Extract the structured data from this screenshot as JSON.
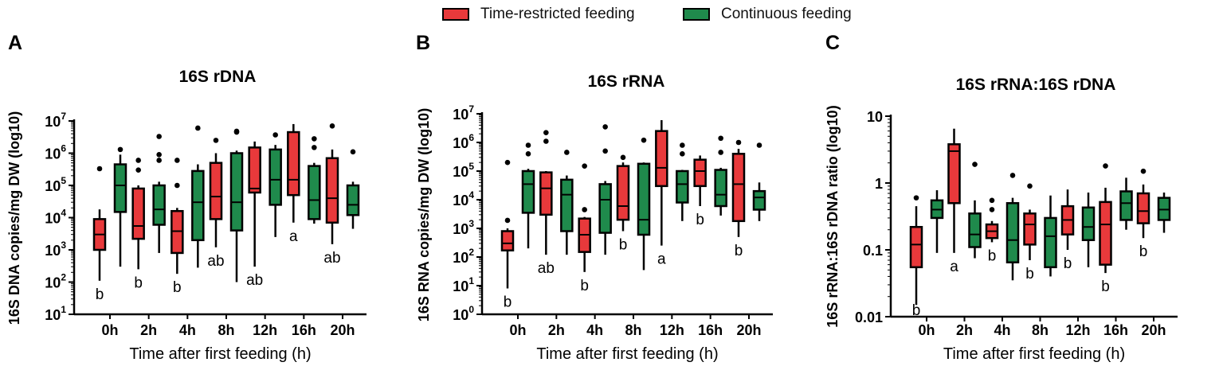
{
  "legend": {
    "trf_label": "Time-restricted feeding",
    "cf_label": "Continuous feeding",
    "trf_color": "#e8393b",
    "cf_color": "#1f8a4c"
  },
  "chart_data": [
    {
      "type": "boxplot",
      "panel_letter": "A",
      "title": "16S rDNA",
      "xlabel": "Time after first feeding (h)",
      "ylabel": "16S DNA copies/mg DW (log10)",
      "yscale": "log10",
      "ylim": [
        10,
        10000000
      ],
      "ytick_labels": [
        {
          "base": "10",
          "exp": "1"
        },
        {
          "base": "10",
          "exp": "2"
        },
        {
          "base": "10",
          "exp": "3"
        },
        {
          "base": "10",
          "exp": "4"
        },
        {
          "base": "10",
          "exp": "5"
        },
        {
          "base": "10",
          "exp": "6"
        },
        {
          "base": "10",
          "exp": "7"
        }
      ],
      "categories": [
        "0h",
        "2h",
        "4h",
        "8h",
        "12h",
        "16h",
        "20h"
      ],
      "letters": [
        "b",
        "b",
        "b",
        "ab",
        "ab",
        "a",
        "ab"
      ],
      "series": [
        {
          "name": "Time-restricted feeding",
          "boxes": [
            {
              "min": 110,
              "q1": 1000,
              "median": 3000,
              "q3": 9000,
              "max": 18000,
              "outliers": [
                330000
              ]
            },
            {
              "min": 250,
              "q1": 2200,
              "median": 5500,
              "q3": 80000,
              "max": 100000,
              "outliers": [
                300000,
                600000
              ]
            },
            {
              "min": 180,
              "q1": 800,
              "median": 3800,
              "q3": 16000,
              "max": 20000,
              "outliers": [
                100000,
                600000
              ]
            },
            {
              "min": 1200,
              "q1": 9000,
              "median": 45000,
              "q3": 500000,
              "max": 1000000,
              "outliers": [
                2500000
              ]
            },
            {
              "min": 300,
              "q1": 60000,
              "median": 80000,
              "q3": 1500000,
              "max": 2300000,
              "outliers": []
            },
            {
              "min": 7000,
              "q1": 50000,
              "median": 150000,
              "q3": 4500000,
              "max": 8000000,
              "outliers": []
            },
            {
              "min": 1500,
              "q1": 7000,
              "median": 40000,
              "q3": 700000,
              "max": 1300000,
              "outliers": [
                7000000
              ]
            }
          ]
        },
        {
          "name": "Continuous feeding",
          "boxes": [
            {
              "min": 300,
              "q1": 15000,
              "median": 100000,
              "q3": 450000,
              "max": 900000,
              "outliers": [
                1300000
              ]
            },
            {
              "min": 800,
              "q1": 6000,
              "median": 18000,
              "q3": 100000,
              "max": 130000,
              "outliers": [
                600000,
                900000,
                3300000
              ]
            },
            {
              "min": 280,
              "q1": 2000,
              "median": 30000,
              "q3": 280000,
              "max": 450000,
              "outliers": [
                6000000
              ]
            },
            {
              "min": 100,
              "q1": 4000,
              "median": 30000,
              "q3": 1000000,
              "max": 1200000,
              "outliers": [
                4500000,
                4800000
              ]
            },
            {
              "min": 2500,
              "q1": 25000,
              "median": 150000,
              "q3": 1300000,
              "max": 1800000,
              "outliers": [
                3700000
              ]
            },
            {
              "min": 6500,
              "q1": 9000,
              "median": 35000,
              "q3": 400000,
              "max": 500000,
              "outliers": [
                1500000,
                2800000
              ]
            },
            {
              "min": 4500,
              "q1": 12000,
              "median": 25000,
              "q3": 100000,
              "max": 130000,
              "outliers": [
                1100000
              ]
            }
          ]
        }
      ]
    },
    {
      "type": "boxplot",
      "panel_letter": "B",
      "title": "16S rRNA",
      "xlabel": "Time after first feeding (h)",
      "ylabel": "16S RNA copies/mg DW (log10)",
      "yscale": "log10",
      "ylim": [
        1,
        10000000
      ],
      "ytick_labels": [
        {
          "base": "10",
          "exp": "0"
        },
        {
          "base": "10",
          "exp": "1"
        },
        {
          "base": "10",
          "exp": "2"
        },
        {
          "base": "10",
          "exp": "3"
        },
        {
          "base": "10",
          "exp": "4"
        },
        {
          "base": "10",
          "exp": "5"
        },
        {
          "base": "10",
          "exp": "6"
        },
        {
          "base": "10",
          "exp": "7"
        }
      ],
      "categories": [
        "0h",
        "2h",
        "4h",
        "8h",
        "12h",
        "16h",
        "20h"
      ],
      "letters": [
        "b",
        "ab",
        "b",
        "b",
        "a",
        "b",
        "b"
      ],
      "series": [
        {
          "name": "Time-restricted feeding",
          "boxes": [
            {
              "min": 8,
              "q1": 170,
              "median": 300,
              "q3": 800,
              "max": 1000,
              "outliers": [
                1900,
                200000
              ]
            },
            {
              "min": 120,
              "q1": 3000,
              "median": 25000,
              "q3": 90000,
              "max": 100000,
              "outliers": [
                1100000,
                2200000
              ]
            },
            {
              "min": 30,
              "q1": 150,
              "median": 600,
              "q3": 2200,
              "max": 2500,
              "outliers": [
                4500,
                150000
              ]
            },
            {
              "min": 800,
              "q1": 2000,
              "median": 6000,
              "q3": 150000,
              "max": 200000,
              "outliers": [
                300000
              ]
            },
            {
              "min": 250,
              "q1": 30000,
              "median": 130000,
              "q3": 2500000,
              "max": 6000000,
              "outliers": []
            },
            {
              "min": 6000,
              "q1": 30000,
              "median": 100000,
              "q3": 250000,
              "max": 350000,
              "outliers": []
            },
            {
              "min": 500,
              "q1": 1800,
              "median": 35000,
              "q3": 400000,
              "max": 600000,
              "outliers": [
                1000000
              ]
            }
          ]
        },
        {
          "name": "Continuous feeding",
          "boxes": [
            {
              "min": 200,
              "q1": 3500,
              "median": 35000,
              "q3": 100000,
              "max": 120000,
              "outliers": [
                400000,
                800000
              ]
            },
            {
              "min": 120,
              "q1": 800,
              "median": 15000,
              "q3": 50000,
              "max": 70000,
              "outliers": [
                450000
              ]
            },
            {
              "min": 120,
              "q1": 700,
              "median": 10000,
              "q3": 35000,
              "max": 45000,
              "outliers": [
                500000,
                3500000
              ]
            },
            {
              "min": 35,
              "q1": 600,
              "median": 2000,
              "q3": 180000,
              "max": 200000,
              "outliers": [
                1200000
              ]
            },
            {
              "min": 1800,
              "q1": 8000,
              "median": 35000,
              "q3": 100000,
              "max": 110000,
              "outliers": [
                400000,
                800000
              ]
            },
            {
              "min": 2800,
              "q1": 6000,
              "median": 15000,
              "q3": 110000,
              "max": 130000,
              "outliers": [
                450000,
                1400000
              ]
            },
            {
              "min": 1800,
              "q1": 4500,
              "median": 12000,
              "q3": 20000,
              "max": 40000,
              "outliers": [
                800000
              ]
            }
          ]
        }
      ]
    },
    {
      "type": "boxplot",
      "panel_letter": "C",
      "title": "16S rRNA:16S rDNA",
      "xlabel": "Time after first feeding (h)",
      "ylabel": "16S rRNA:16S rDNA ratio (log10)",
      "yscale": "log10",
      "ylim": [
        0.01,
        10
      ],
      "ytick_labels": [
        {
          "base": "0.01",
          "exp": ""
        },
        {
          "base": "0.1",
          "exp": ""
        },
        {
          "base": "1",
          "exp": ""
        },
        {
          "base": "10",
          "exp": ""
        }
      ],
      "categories": [
        "0h",
        "2h",
        "4h",
        "8h",
        "12h",
        "16h",
        "20h"
      ],
      "letters": [
        "b",
        "a",
        "b",
        "b",
        "b",
        "b",
        "b"
      ],
      "series": [
        {
          "name": "Time-restricted feeding",
          "boxes": [
            {
              "min": 0.015,
              "q1": 0.055,
              "median": 0.12,
              "q3": 0.22,
              "max": 0.45,
              "outliers": [
                0.6
              ]
            },
            {
              "min": 0.09,
              "q1": 0.5,
              "median": 3.0,
              "q3": 3.8,
              "max": 6.5,
              "outliers": []
            },
            {
              "min": 0.13,
              "q1": 0.15,
              "median": 0.19,
              "q3": 0.24,
              "max": 0.27,
              "outliers": [
                0.4,
                0.55
              ]
            },
            {
              "min": 0.07,
              "q1": 0.12,
              "median": 0.24,
              "q3": 0.35,
              "max": 0.4,
              "outliers": [
                0.9
              ]
            },
            {
              "min": 0.1,
              "q1": 0.17,
              "median": 0.28,
              "q3": 0.45,
              "max": 0.8,
              "outliers": []
            },
            {
              "min": 0.045,
              "q1": 0.06,
              "median": 0.24,
              "q3": 0.52,
              "max": 0.85,
              "outliers": [
                1.8
              ]
            },
            {
              "min": 0.15,
              "q1": 0.25,
              "median": 0.38,
              "q3": 0.7,
              "max": 0.95,
              "outliers": [
                1.5
              ]
            }
          ]
        },
        {
          "name": "Continuous feeding",
          "boxes": [
            {
              "min": 0.09,
              "q1": 0.3,
              "median": 0.4,
              "q3": 0.55,
              "max": 0.78,
              "outliers": []
            },
            {
              "min": 0.075,
              "q1": 0.11,
              "median": 0.17,
              "q3": 0.35,
              "max": 0.55,
              "outliers": [
                1.9
              ]
            },
            {
              "min": 0.035,
              "q1": 0.065,
              "median": 0.14,
              "q3": 0.5,
              "max": 0.6,
              "outliers": [
                1.3
              ]
            },
            {
              "min": 0.04,
              "q1": 0.055,
              "median": 0.16,
              "q3": 0.3,
              "max": 0.65,
              "outliers": []
            },
            {
              "min": 0.055,
              "q1": 0.14,
              "median": 0.22,
              "q3": 0.43,
              "max": 0.72,
              "outliers": []
            },
            {
              "min": 0.2,
              "q1": 0.28,
              "median": 0.5,
              "q3": 0.75,
              "max": 1.2,
              "outliers": []
            },
            {
              "min": 0.18,
              "q1": 0.28,
              "median": 0.4,
              "q3": 0.6,
              "max": 0.72,
              "outliers": []
            }
          ]
        }
      ]
    }
  ]
}
